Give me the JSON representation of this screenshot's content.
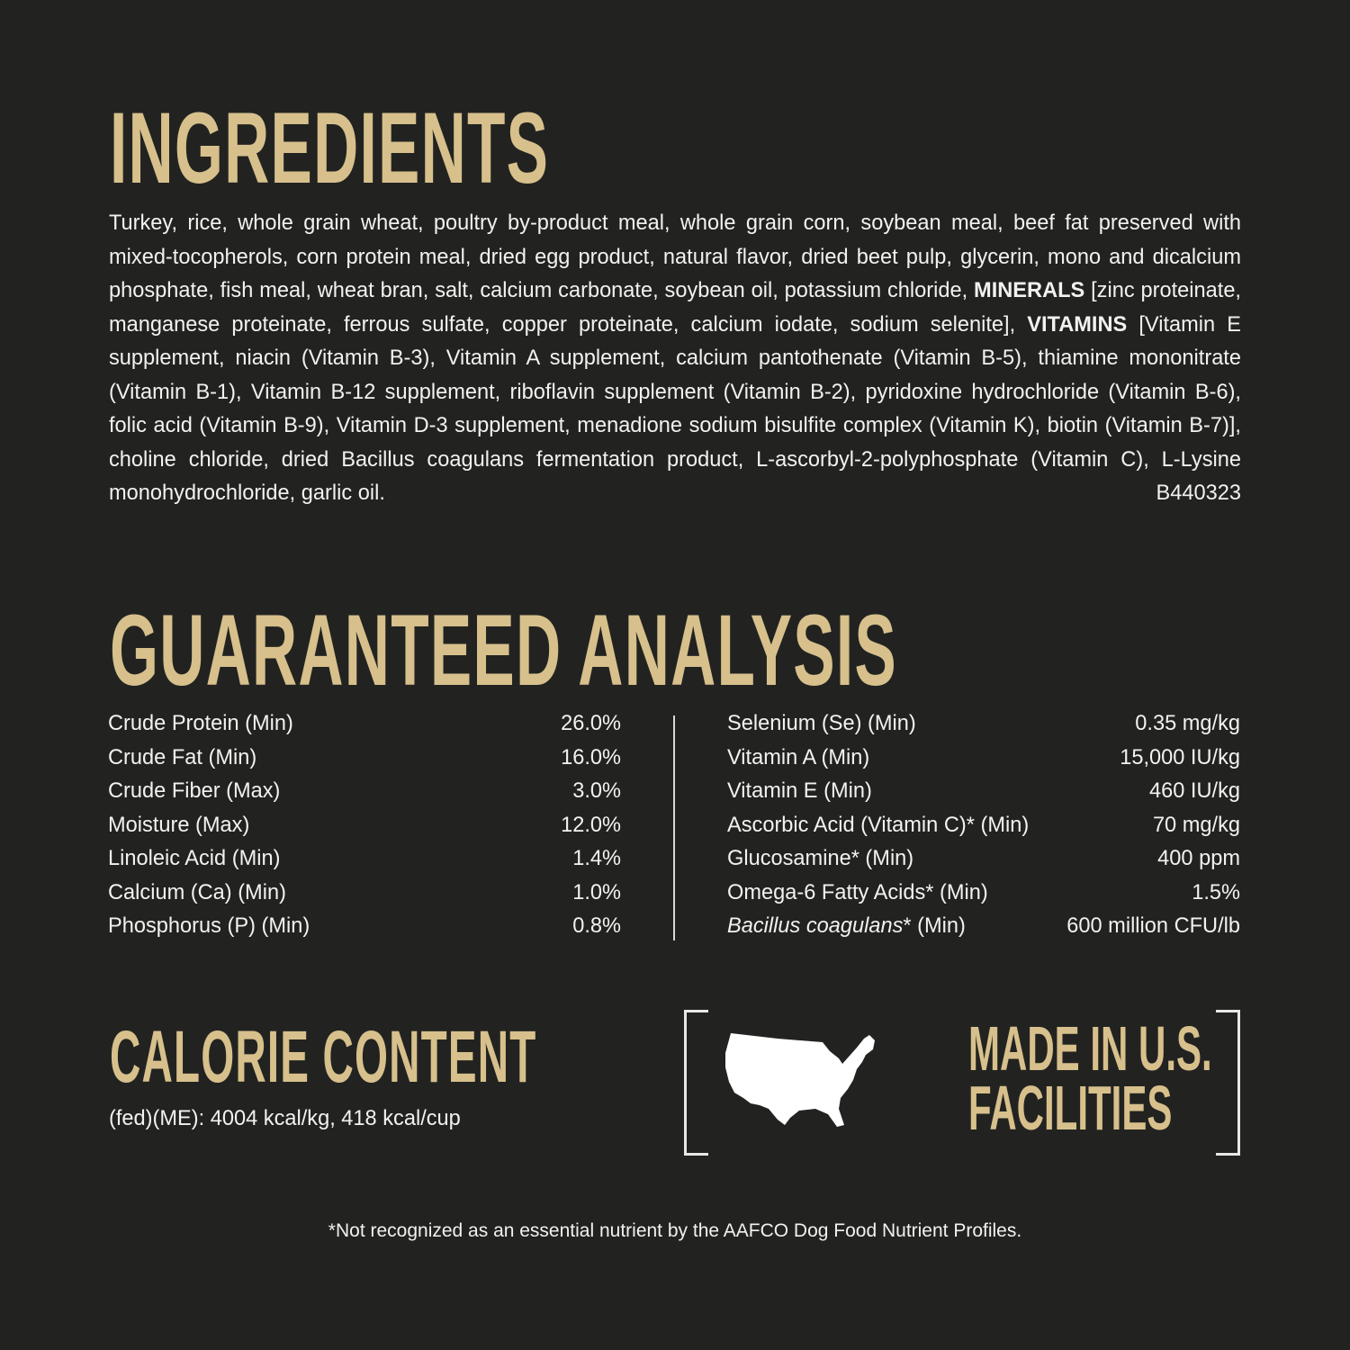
{
  "ingredients": {
    "title": "INGREDIENTS",
    "segments": [
      {
        "text": "Turkey, rice, whole grain wheat, poultry by-product meal, whole grain corn, soybean meal, beef fat preserved with mixed-tocopherols, corn protein meal, dried egg product, natural flavor, dried beet pulp, glycerin, mono and dicalcium phosphate, fish meal, wheat bran, salt, calcium carbonate, soybean oil, potassium chloride, ",
        "bold": false
      },
      {
        "text": "MINERALS",
        "bold": true
      },
      {
        "text": " [zinc proteinate, manganese proteinate, ferrous sulfate, copper proteinate, calcium iodate, sodium selenite], ",
        "bold": false
      },
      {
        "text": "VITAMINS",
        "bold": true
      },
      {
        "text": " [Vitamin E supplement, niacin (Vitamin B-3), Vitamin A supplement, calcium pantothenate (Vitamin B-5), thiamine mononitrate (Vitamin B-1), Vitamin B-12 supplement, riboflavin supplement (Vitamin B-2), pyridoxine hydrochloride (Vitamin B-6), folic acid (Vitamin B-9), Vitamin D-3 supplement, menadione sodium bisulfite complex (Vitamin K), biotin (Vitamin B-7)], choline chloride, dried Bacillus coagulans fermentation product, L-ascorbyl-2-polyphosphate (Vitamin C), L-Lysine monohydrochloride, garlic oil.",
        "bold": false
      }
    ],
    "code": "B440323"
  },
  "analysis": {
    "title": "GUARANTEED ANALYSIS",
    "left": [
      {
        "label": "Crude Protein (Min)",
        "value": "26.0%"
      },
      {
        "label": "Crude Fat (Min)",
        "value": "16.0%"
      },
      {
        "label": "Crude Fiber (Max)",
        "value": "3.0%"
      },
      {
        "label": "Moisture (Max)",
        "value": "12.0%"
      },
      {
        "label": "Linoleic Acid (Min)",
        "value": "1.4%"
      },
      {
        "label": "Calcium (Ca) (Min)",
        "value": "1.0%"
      },
      {
        "label": "Phosphorus (P) (Min)",
        "value": "0.8%"
      }
    ],
    "right": [
      {
        "label": "Selenium (Se) (Min)",
        "value": "0.35 mg/kg"
      },
      {
        "label": "Vitamin A (Min)",
        "value": "15,000 IU/kg"
      },
      {
        "label": "Vitamin E (Min)",
        "value": "460 IU/kg"
      },
      {
        "label": "Ascorbic Acid (Vitamin C)* (Min)",
        "value": "70 mg/kg"
      },
      {
        "label": "Glucosamine* (Min)",
        "value": "400 ppm"
      },
      {
        "label": "Omega-6 Fatty Acids* (Min)",
        "value": "1.5%"
      },
      {
        "label_italic": "Bacillus coagulans",
        "label": "* (Min)",
        "value": "600 million CFU/lb"
      }
    ]
  },
  "calorie": {
    "title": "CALORIE CONTENT",
    "text": "(fed)(ME): 4004 kcal/kg, 418 kcal/cup"
  },
  "badge": {
    "icon": "usa-map-icon",
    "line1": "MADE IN U.S.",
    "line2": "FACILITIES"
  },
  "footnote": "*Not recognized as an essential nutrient by the AAFCO Dog Food Nutrient Profiles.",
  "colors": {
    "background": "#222321",
    "accent_gold": "#d7c08c",
    "text": "#f2f2f0"
  }
}
